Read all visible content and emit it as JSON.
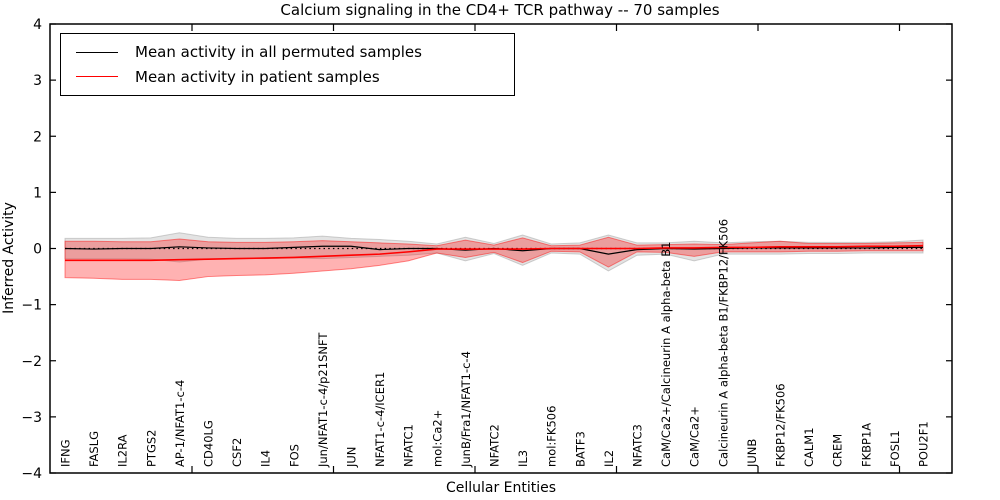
{
  "chart_data": {
    "type": "line",
    "title": "Calcium signaling in the CD4+ TCR pathway -- 70 samples",
    "xlabel": "Cellular Entities",
    "ylabel": "Inferred Activity",
    "ylim": [
      -4,
      4
    ],
    "yticks": [
      4,
      3,
      2,
      1,
      0,
      -1,
      -2,
      -3,
      -4
    ],
    "grid": false,
    "legend_position": "upper left",
    "zero_line": {
      "style": "dotted",
      "color": "#000000",
      "y": 0
    },
    "categories": [
      "IFNG",
      "FASLG",
      "IL2RA",
      "PTGS2",
      "AP-1/NFAT1-c-4",
      "CD40LG",
      "CSF2",
      "IL4",
      "FOS",
      "Jun/NFAT1-c-4/p21SNFT",
      "JUN",
      "NFAT1-c-4/ICER1",
      "NFATC1",
      "mol:Ca2+",
      "JunB/Fra1/NFAT1-c-4",
      "NFATC2",
      "IL3",
      "mol:FK506",
      "BATF3",
      "IL2",
      "NFATC3",
      "CaM/Ca2+/Calcineurin A alpha-beta B1",
      "CaM/Ca2+",
      "Calcineurin A alpha-beta B1/FKBP12/FK506",
      "JUNB",
      "FKBP12/FK506",
      "CALM1",
      "CREM",
      "FKBP1A",
      "FOSL1",
      "POU2F1"
    ],
    "series": [
      {
        "name": "Mean activity in all permuted samples",
        "color": "#000000",
        "band_color": "#999999",
        "band_opacity": 0.28,
        "values": [
          0.0,
          -0.01,
          0.0,
          0.0,
          0.03,
          0.01,
          0.0,
          0.0,
          0.02,
          0.04,
          0.04,
          -0.02,
          0.0,
          0.0,
          -0.03,
          0.0,
          -0.04,
          0.0,
          0.0,
          -0.1,
          -0.02,
          0.0,
          -0.01,
          0.0,
          0.01,
          0.01,
          0.01,
          0.01,
          0.01,
          0.02,
          0.02
        ],
        "band_upper": [
          0.18,
          0.18,
          0.18,
          0.19,
          0.28,
          0.2,
          0.18,
          0.18,
          0.19,
          0.22,
          0.18,
          0.16,
          0.13,
          0.08,
          0.2,
          0.09,
          0.24,
          0.08,
          0.1,
          0.24,
          0.1,
          0.1,
          0.13,
          0.1,
          0.12,
          0.13,
          0.11,
          0.11,
          0.11,
          0.12,
          0.15
        ],
        "band_lower": [
          -0.18,
          -0.18,
          -0.18,
          -0.19,
          -0.24,
          -0.19,
          -0.18,
          -0.18,
          -0.17,
          -0.18,
          -0.16,
          -0.14,
          -0.12,
          -0.08,
          -0.22,
          -0.09,
          -0.3,
          -0.08,
          -0.1,
          -0.4,
          -0.12,
          -0.1,
          -0.22,
          -0.1,
          -0.1,
          -0.1,
          -0.09,
          -0.09,
          -0.08,
          -0.08,
          -0.08
        ]
      },
      {
        "name": "Mean activity in patient samples",
        "color": "#ff0000",
        "band_color": "#ff0000",
        "band_opacity": 0.3,
        "values": [
          -0.21,
          -0.21,
          -0.21,
          -0.21,
          -0.2,
          -0.19,
          -0.18,
          -0.17,
          -0.16,
          -0.14,
          -0.12,
          -0.1,
          -0.06,
          -0.01,
          -0.01,
          -0.01,
          -0.01,
          0.0,
          0.0,
          0.0,
          0.0,
          0.01,
          0.01,
          0.02,
          0.02,
          0.03,
          0.03,
          0.03,
          0.04,
          0.04,
          0.05
        ],
        "band_upper": [
          0.13,
          0.13,
          0.12,
          0.12,
          0.17,
          0.12,
          0.11,
          0.11,
          0.12,
          0.14,
          0.12,
          0.1,
          0.08,
          0.05,
          0.15,
          0.06,
          0.19,
          0.05,
          0.06,
          0.2,
          0.06,
          0.07,
          0.08,
          0.07,
          0.1,
          0.13,
          0.09,
          0.09,
          0.09,
          0.1,
          0.11
        ],
        "band_lower": [
          -0.52,
          -0.53,
          -0.55,
          -0.55,
          -0.57,
          -0.5,
          -0.48,
          -0.47,
          -0.44,
          -0.4,
          -0.36,
          -0.3,
          -0.22,
          -0.08,
          -0.16,
          -0.07,
          -0.25,
          -0.05,
          -0.06,
          -0.33,
          -0.06,
          -0.07,
          -0.14,
          -0.06,
          -0.06,
          -0.06,
          -0.05,
          -0.05,
          -0.04,
          -0.04,
          -0.04
        ]
      }
    ]
  }
}
